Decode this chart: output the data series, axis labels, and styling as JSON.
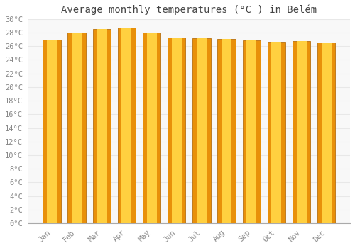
{
  "title": "Average monthly temperatures (°C ) in Belém",
  "months": [
    "Jan",
    "Feb",
    "Mar",
    "Apr",
    "May",
    "Jun",
    "Jul",
    "Aug",
    "Sep",
    "Oct",
    "Nov",
    "Dec"
  ],
  "values": [
    27.0,
    28.0,
    28.5,
    28.7,
    28.0,
    27.3,
    27.2,
    27.1,
    26.9,
    26.6,
    26.8,
    26.5
  ],
  "bar_color_center": "#FFD040",
  "bar_color_edge": "#E8900A",
  "background_color": "#ffffff",
  "plot_bg_color": "#f8f8f8",
  "ylim": [
    0,
    30
  ],
  "ytick_step": 2,
  "grid_color": "#e8e8e8",
  "title_fontsize": 10,
  "tick_fontsize": 7.5,
  "bar_width": 0.72
}
